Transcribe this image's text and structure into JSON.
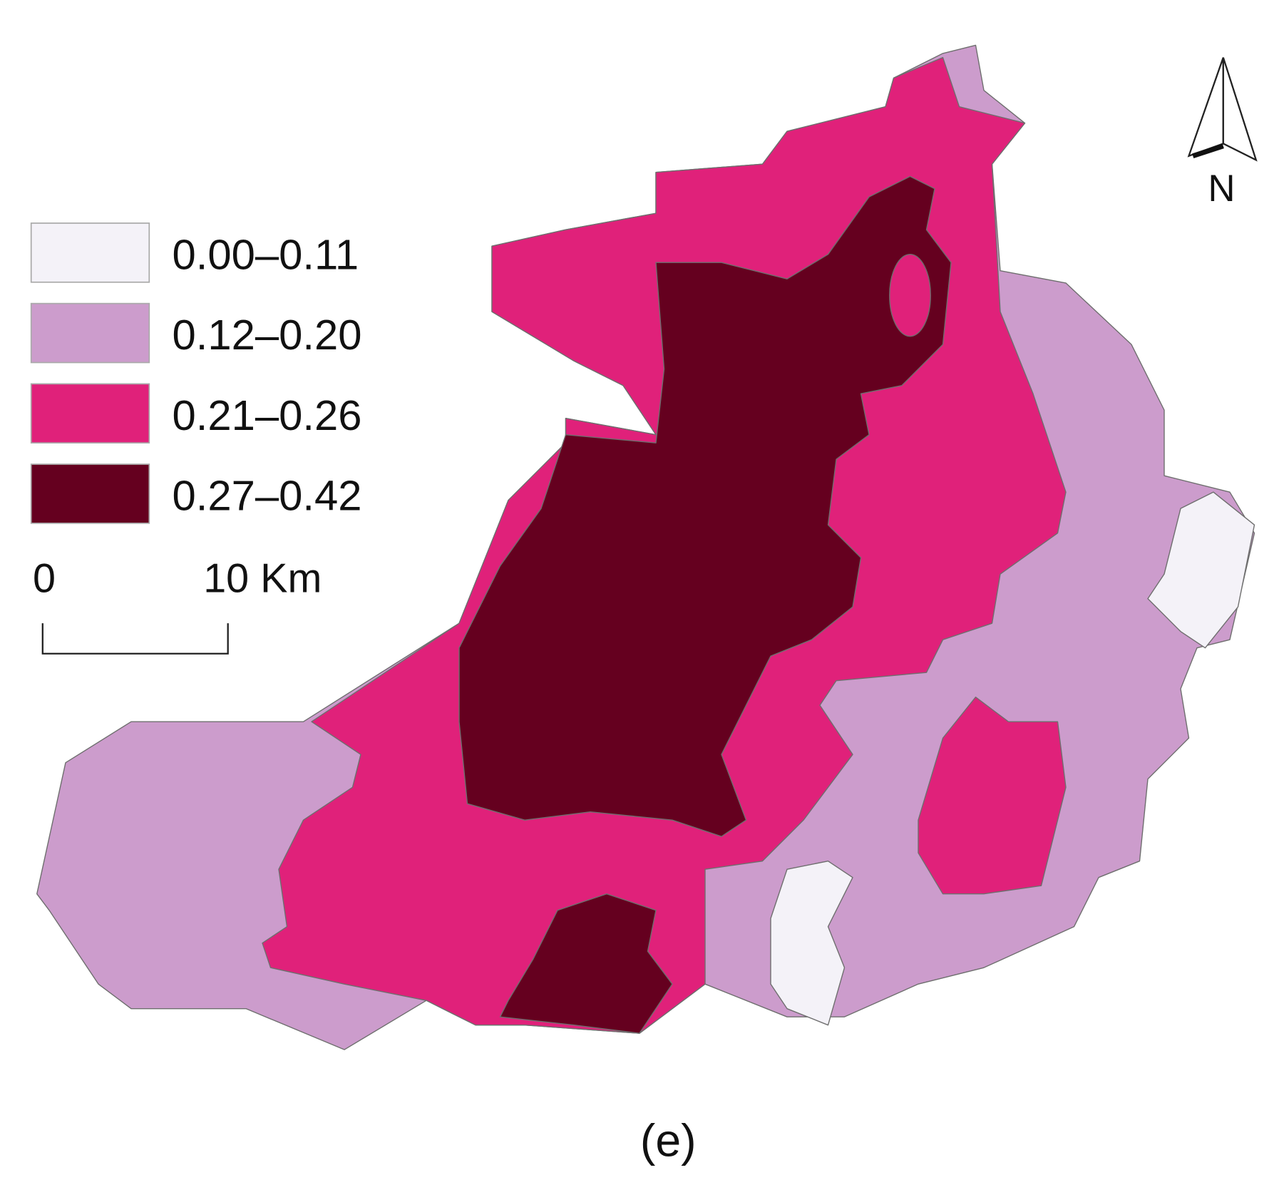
{
  "legend": {
    "items": [
      {
        "label": "0.00–0.11",
        "color": "#f4f2f8"
      },
      {
        "label": "0.12–0.20",
        "color": "#cc9ccc"
      },
      {
        "label": "0.21–0.26",
        "color": "#e0217a"
      },
      {
        "label": "0.27–0.42",
        "color": "#65001f"
      }
    ]
  },
  "scale_bar": {
    "start_label": "0",
    "end_label": "10 Km"
  },
  "north_arrow": {
    "label": "N"
  },
  "caption": "(e)"
}
